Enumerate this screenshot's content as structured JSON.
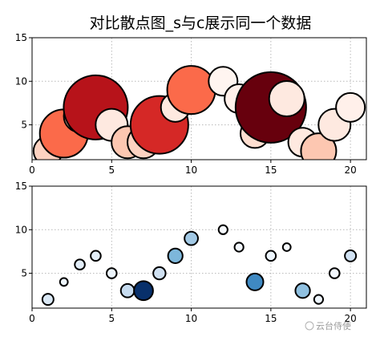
{
  "title": "对比散点图_s与c展示同一个数据",
  "watermark": "云台侍使",
  "chart_data": [
    {
      "type": "scatter",
      "xlim": [
        0,
        21
      ],
      "ylim": [
        1,
        15
      ],
      "xticks": [
        0,
        5,
        10,
        15,
        20
      ],
      "yticks": [
        5,
        10,
        15
      ],
      "grid": true,
      "grid_style": "dotted",
      "colormap": "Reds",
      "edgecolor": "#000000",
      "points": [
        {
          "x": 1,
          "y": 2,
          "s": 1.8,
          "c": 0.15
        },
        {
          "x": 2,
          "y": 4,
          "s": 3.0,
          "c": 0.5
        },
        {
          "x": 3,
          "y": 6,
          "s": 2.0,
          "c": 0.2
        },
        {
          "x": 4,
          "y": 7,
          "s": 4.0,
          "c": 0.8
        },
        {
          "x": 5,
          "y": 5,
          "s": 2.0,
          "c": 0.05
        },
        {
          "x": 6,
          "y": 3,
          "s": 2.0,
          "c": 0.2
        },
        {
          "x": 7,
          "y": 3,
          "s": 2.0,
          "c": 0.15
        },
        {
          "x": 8,
          "y": 5,
          "s": 3.6,
          "c": 0.7
        },
        {
          "x": 9,
          "y": 7,
          "s": 1.8,
          "c": 0.05
        },
        {
          "x": 10,
          "y": 9,
          "s": 3.0,
          "c": 0.5
        },
        {
          "x": 12,
          "y": 10,
          "s": 1.8,
          "c": 0.0
        },
        {
          "x": 13,
          "y": 8,
          "s": 1.8,
          "c": 0.02
        },
        {
          "x": 14,
          "y": 4,
          "s": 1.8,
          "c": 0.1
        },
        {
          "x": 15,
          "y": 7,
          "s": 4.4,
          "c": 1.0
        },
        {
          "x": 16,
          "y": 8,
          "s": 2.2,
          "c": 0.05
        },
        {
          "x": 17,
          "y": 3,
          "s": 1.8,
          "c": 0.05
        },
        {
          "x": 18,
          "y": 2,
          "s": 2.2,
          "c": 0.2
        },
        {
          "x": 19,
          "y": 5,
          "s": 2.0,
          "c": 0.05
        },
        {
          "x": 20,
          "y": 7,
          "s": 1.8,
          "c": 0.02
        }
      ]
    },
    {
      "type": "scatter",
      "xlim": [
        0,
        21
      ],
      "ylim": [
        1,
        15
      ],
      "xticks": [
        0,
        5,
        10,
        15,
        20
      ],
      "yticks": [
        5,
        10,
        15
      ],
      "grid": true,
      "grid_style": "dotted",
      "colormap": "Blues",
      "edgecolor": "#000000",
      "points": [
        {
          "x": 1,
          "y": 2,
          "s": 1.0,
          "c": 0.15
        },
        {
          "x": 2,
          "y": 4,
          "s": 0.7,
          "c": 0.05
        },
        {
          "x": 3,
          "y": 6,
          "s": 0.9,
          "c": 0.1
        },
        {
          "x": 4,
          "y": 7,
          "s": 0.9,
          "c": 0.1
        },
        {
          "x": 5,
          "y": 5,
          "s": 0.9,
          "c": 0.05
        },
        {
          "x": 6,
          "y": 3,
          "s": 1.2,
          "c": 0.25
        },
        {
          "x": 7,
          "y": 3,
          "s": 1.7,
          "c": 1.0
        },
        {
          "x": 8,
          "y": 5,
          "s": 1.1,
          "c": 0.2
        },
        {
          "x": 9,
          "y": 7,
          "s": 1.3,
          "c": 0.45
        },
        {
          "x": 10,
          "y": 9,
          "s": 1.2,
          "c": 0.35
        },
        {
          "x": 12,
          "y": 10,
          "s": 0.8,
          "c": 0.0
        },
        {
          "x": 13,
          "y": 8,
          "s": 0.8,
          "c": 0.02
        },
        {
          "x": 14,
          "y": 4,
          "s": 1.5,
          "c": 0.65
        },
        {
          "x": 15,
          "y": 7,
          "s": 0.9,
          "c": 0.05
        },
        {
          "x": 16,
          "y": 8,
          "s": 0.7,
          "c": 0.0
        },
        {
          "x": 17,
          "y": 3,
          "s": 1.3,
          "c": 0.4
        },
        {
          "x": 18,
          "y": 2,
          "s": 0.8,
          "c": 0.05
        },
        {
          "x": 19,
          "y": 5,
          "s": 0.9,
          "c": 0.02
        },
        {
          "x": 20,
          "y": 7,
          "s": 1.0,
          "c": 0.2
        }
      ]
    }
  ]
}
